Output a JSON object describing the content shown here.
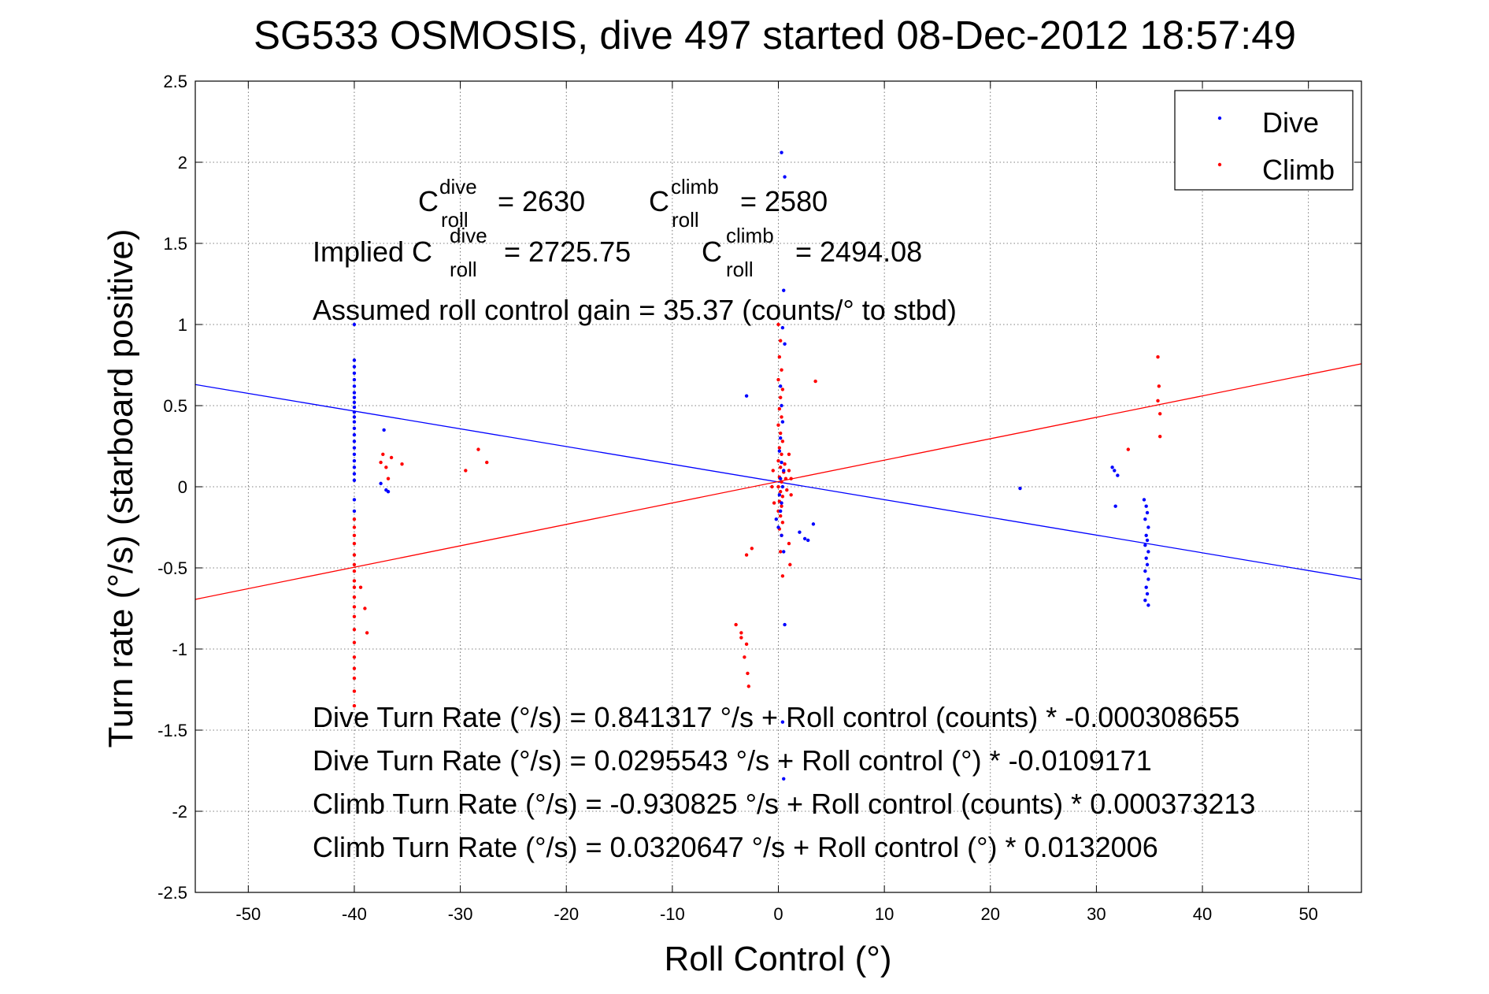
{
  "chart_data": {
    "type": "scatter",
    "title": "SG533 OSMOSIS, dive 497 started 08-Dec-2012 18:57:49",
    "xlabel": "Roll Control (°)",
    "ylabel": "Turn rate (°/s) (starboard positive)",
    "xlim": [
      -55,
      55
    ],
    "ylim": [
      -2.5,
      2.5
    ],
    "xticks": [
      "-50",
      "-40",
      "-30",
      "-20",
      "-10",
      "0",
      "10",
      "20",
      "30",
      "40",
      "50"
    ],
    "xtick_values": [
      -50,
      -40,
      -30,
      -20,
      -10,
      0,
      10,
      20,
      30,
      40,
      50
    ],
    "yticks": [
      "2.5",
      "2",
      "1.5",
      "1",
      "0.5",
      "0",
      "-0.5",
      "-1",
      "-1.5",
      "-2",
      "-2.5"
    ],
    "ytick_values": [
      2.5,
      2,
      1.5,
      1,
      0.5,
      0,
      -0.5,
      -1,
      -1.5,
      -2,
      -2.5
    ],
    "grid": true,
    "legend_position": "top-right",
    "series": [
      {
        "name": "Dive",
        "color": "#0000ff",
        "points": [
          [
            -40,
            0.78
          ],
          [
            -40,
            0.74
          ],
          [
            -40,
            0.7
          ],
          [
            -40,
            0.66
          ],
          [
            -40,
            0.62
          ],
          [
            -40,
            0.58
          ],
          [
            -40,
            0.55
          ],
          [
            -40,
            0.52
          ],
          [
            -40,
            0.49
          ],
          [
            -40,
            0.46
          ],
          [
            -40,
            0.43
          ],
          [
            -40,
            0.4
          ],
          [
            -40,
            0.36
          ],
          [
            -40,
            0.32
          ],
          [
            -40,
            0.28
          ],
          [
            -40,
            0.24
          ],
          [
            -40,
            0.2
          ],
          [
            -40,
            0.16
          ],
          [
            -40,
            0.12
          ],
          [
            -40,
            0.08
          ],
          [
            -40,
            0.04
          ],
          [
            -40,
            1.0
          ],
          [
            -40,
            -0.08
          ],
          [
            -40,
            -0.15
          ],
          [
            -37.2,
            0.35
          ],
          [
            -37.5,
            0.02
          ],
          [
            -37.0,
            -0.02
          ],
          [
            -36.8,
            -0.03
          ],
          [
            -3.0,
            0.56
          ],
          [
            0.3,
            2.06
          ],
          [
            0.6,
            1.91
          ],
          [
            0.5,
            1.21
          ],
          [
            0.4,
            0.98
          ],
          [
            0.6,
            0.88
          ],
          [
            0.2,
            0.62
          ],
          [
            0.3,
            0.5
          ],
          [
            0.4,
            0.4
          ],
          [
            0.2,
            0.3
          ],
          [
            0.1,
            0.22
          ],
          [
            0.3,
            0.15
          ],
          [
            0.5,
            0.1
          ],
          [
            0.2,
            0.05
          ],
          [
            0.4,
            0.0
          ],
          [
            0.1,
            -0.05
          ],
          [
            0.3,
            -0.1
          ],
          [
            0.2,
            -0.15
          ],
          [
            -0.2,
            -0.2
          ],
          [
            0.0,
            -0.25
          ],
          [
            0.3,
            -0.3
          ],
          [
            0.5,
            -0.4
          ],
          [
            0.6,
            -0.85
          ],
          [
            0.4,
            -1.45
          ],
          [
            0.5,
            -1.8
          ],
          [
            2.0,
            -0.28
          ],
          [
            2.5,
            -0.32
          ],
          [
            2.8,
            -0.33
          ],
          [
            3.3,
            -0.23
          ],
          [
            22.8,
            -0.01
          ],
          [
            31.5,
            0.12
          ],
          [
            31.7,
            0.1
          ],
          [
            32.0,
            0.07
          ],
          [
            31.8,
            -0.12
          ],
          [
            34.5,
            -0.08
          ],
          [
            34.7,
            -0.12
          ],
          [
            34.8,
            -0.16
          ],
          [
            34.6,
            -0.2
          ],
          [
            34.9,
            -0.25
          ],
          [
            34.7,
            -0.3
          ],
          [
            34.8,
            -0.33
          ],
          [
            34.6,
            -0.36
          ],
          [
            34.9,
            -0.4
          ],
          [
            34.7,
            -0.44
          ],
          [
            34.8,
            -0.48
          ],
          [
            34.6,
            -0.52
          ],
          [
            34.9,
            -0.57
          ],
          [
            34.7,
            -0.62
          ],
          [
            34.8,
            -0.66
          ],
          [
            34.6,
            -0.7
          ],
          [
            34.9,
            -0.73
          ]
        ],
        "fit": {
          "intercept": 0.0295543,
          "slope": -0.0109171
        }
      },
      {
        "name": "Climb",
        "color": "#ff0000",
        "points": [
          [
            -40,
            -0.2
          ],
          [
            -40,
            -0.25
          ],
          [
            -40,
            -0.3
          ],
          [
            -40,
            -0.35
          ],
          [
            -40,
            -0.42
          ],
          [
            -40,
            -0.48
          ],
          [
            -40,
            -0.52
          ],
          [
            -40,
            -0.58
          ],
          [
            -40,
            -0.62
          ],
          [
            -40,
            -0.68
          ],
          [
            -40,
            -0.74
          ],
          [
            -40,
            -0.8
          ],
          [
            -40,
            -0.88
          ],
          [
            -40,
            -0.96
          ],
          [
            -40,
            -1.05
          ],
          [
            -40,
            -1.12
          ],
          [
            -40,
            -1.18
          ],
          [
            -40,
            -1.26
          ],
          [
            -40,
            -1.35
          ],
          [
            -39.4,
            -0.62
          ],
          [
            -39.0,
            -0.75
          ],
          [
            -38.8,
            -0.9
          ],
          [
            -37.5,
            0.15
          ],
          [
            -37.3,
            0.2
          ],
          [
            -37.0,
            0.12
          ],
          [
            -36.8,
            0.05
          ],
          [
            -36.5,
            0.18
          ],
          [
            -35.5,
            0.14
          ],
          [
            -29.5,
            0.1
          ],
          [
            -28.3,
            0.23
          ],
          [
            -27.5,
            0.15
          ],
          [
            -4.0,
            -0.85
          ],
          [
            -3.5,
            -0.93
          ],
          [
            -3.0,
            -0.97
          ],
          [
            -3.2,
            -1.05
          ],
          [
            -2.9,
            -1.15
          ],
          [
            -2.8,
            -1.23
          ],
          [
            -3.0,
            -0.42
          ],
          [
            -2.5,
            -0.38
          ],
          [
            -3.5,
            -0.9
          ],
          [
            0.0,
            1.0
          ],
          [
            0.2,
            0.9
          ],
          [
            0.1,
            0.8
          ],
          [
            0.3,
            0.72
          ],
          [
            0.0,
            0.66
          ],
          [
            0.4,
            0.6
          ],
          [
            0.2,
            0.55
          ],
          [
            0.1,
            0.48
          ],
          [
            0.3,
            0.43
          ],
          [
            0.0,
            0.38
          ],
          [
            0.2,
            0.33
          ],
          [
            0.4,
            0.28
          ],
          [
            0.1,
            0.24
          ],
          [
            0.3,
            0.2
          ],
          [
            0.0,
            0.16
          ],
          [
            0.2,
            0.12
          ],
          [
            0.5,
            0.09
          ],
          [
            0.1,
            0.06
          ],
          [
            0.3,
            0.03
          ],
          [
            0.0,
            0.0
          ],
          [
            0.2,
            -0.03
          ],
          [
            0.4,
            -0.06
          ],
          [
            0.1,
            -0.09
          ],
          [
            0.3,
            -0.12
          ],
          [
            0.0,
            -0.15
          ],
          [
            0.2,
            -0.18
          ],
          [
            0.4,
            -0.22
          ],
          [
            0.1,
            -0.26
          ],
          [
            0.3,
            -0.3
          ],
          [
            0.6,
            0.14
          ],
          [
            0.7,
            0.05
          ],
          [
            0.8,
            -0.02
          ],
          [
            1.0,
            0.1
          ],
          [
            1.2,
            0.05
          ],
          [
            1.2,
            -0.05
          ],
          [
            1.0,
            0.2
          ],
          [
            -0.5,
            0.1
          ],
          [
            -0.4,
            -0.1
          ],
          [
            -0.6,
            0.0
          ],
          [
            0.2,
            -0.4
          ],
          [
            0.4,
            -0.55
          ],
          [
            1.1,
            -0.48
          ],
          [
            1.0,
            -0.35
          ],
          [
            3.5,
            0.65
          ],
          [
            33.0,
            0.23
          ],
          [
            35.8,
            0.8
          ],
          [
            35.9,
            0.62
          ],
          [
            35.8,
            0.53
          ],
          [
            36.0,
            0.45
          ],
          [
            36.0,
            0.31
          ]
        ],
        "fit": {
          "intercept": 0.0320647,
          "slope": 0.0132006
        }
      }
    ],
    "annotations": {
      "c_letter": "C",
      "c_roll_sub": "roll",
      "c_dive_sup": "dive",
      "c_climb_sup": "climb",
      "c_dive_value": "= 2630",
      "c_climb_value": "= 2580",
      "implied_prefix": "Implied C",
      "implied_dive_value": "= 2725.75",
      "implied_climb_value": "= 2494.08",
      "gain_text": "Assumed roll control gain = 35.37 (counts/° to stbd)",
      "fit_lines": [
        "Dive Turn Rate (°/s) = 0.841317 °/s + Roll control (counts) * -0.000308655",
        "Dive Turn Rate (°/s) = 0.0295543 °/s + Roll control (°) * -0.0109171",
        "Climb Turn Rate (°/s) = -0.930825 °/s + Roll control (counts) * 0.000373213",
        "Climb Turn Rate (°/s) = 0.0320647 °/s + Roll control (°) * 0.0132006"
      ]
    }
  }
}
